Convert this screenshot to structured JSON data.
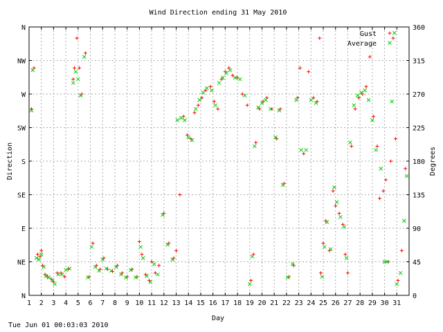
{
  "footer": "Tue Jun 01 00:03:03 2010",
  "chart_data": {
    "type": "scatter",
    "title": "Wind Direction ending 31 May 2010",
    "xlabel": "Day",
    "ylabel_left": "Direction",
    "ylabel_right": "Degrees",
    "xlim": [
      1,
      32
    ],
    "ylim": [
      0,
      360
    ],
    "x_ticks": [
      "1",
      "2",
      "3",
      "4",
      "5",
      "6",
      "7",
      "8",
      "9",
      "10",
      "11",
      "12",
      "13",
      "14",
      "15",
      "16",
      "17",
      "18",
      "19",
      "20",
      "21",
      "22",
      "23",
      "24",
      "25",
      "26",
      "27",
      "28",
      "29",
      "30",
      "31"
    ],
    "y_ticks_left": [
      {
        "value": 0,
        "label": "N"
      },
      {
        "value": 45,
        "label": "NE"
      },
      {
        "value": 90,
        "label": "E"
      },
      {
        "value": 135,
        "label": "SE"
      },
      {
        "value": 180,
        "label": "S"
      },
      {
        "value": 225,
        "label": "SW"
      },
      {
        "value": 270,
        "label": "W"
      },
      {
        "value": 315,
        "label": "NW"
      },
      {
        "value": 360,
        "label": "N"
      }
    ],
    "y_ticks_right": [
      0,
      45,
      90,
      135,
      180,
      225,
      270,
      315,
      360
    ],
    "grid": true,
    "legend_position": "top-right",
    "series": [
      {
        "name": "Gust",
        "color": "#ff0000",
        "points": [
          [
            1.2,
            250
          ],
          [
            1.4,
            305
          ],
          [
            1.7,
            55
          ],
          [
            1.9,
            52
          ],
          [
            2.0,
            60
          ],
          [
            2.1,
            40
          ],
          [
            2.3,
            28
          ],
          [
            2.5,
            25
          ],
          [
            2.8,
            22
          ],
          [
            3.0,
            18
          ],
          [
            3.3,
            30
          ],
          [
            3.6,
            30
          ],
          [
            3.9,
            25
          ],
          [
            4.2,
            35
          ],
          [
            4.6,
            290
          ],
          [
            4.7,
            305
          ],
          [
            4.9,
            345
          ],
          [
            5.1,
            305
          ],
          [
            5.3,
            270
          ],
          [
            5.6,
            325
          ],
          [
            5.9,
            25
          ],
          [
            6.2,
            70
          ],
          [
            6.5,
            40
          ],
          [
            6.8,
            35
          ],
          [
            7.1,
            50
          ],
          [
            7.4,
            35
          ],
          [
            7.8,
            32
          ],
          [
            8.2,
            40
          ],
          [
            8.6,
            30
          ],
          [
            9.0,
            25
          ],
          [
            9.4,
            35
          ],
          [
            9.8,
            25
          ],
          [
            10.0,
            72
          ],
          [
            10.2,
            55
          ],
          [
            10.5,
            28
          ],
          [
            10.8,
            20
          ],
          [
            11.0,
            45
          ],
          [
            11.3,
            30
          ],
          [
            11.6,
            40
          ],
          [
            12.0,
            110
          ],
          [
            12.4,
            70
          ],
          [
            12.8,
            50
          ],
          [
            13.0,
            60
          ],
          [
            13.3,
            135
          ],
          [
            13.6,
            240
          ],
          [
            13.9,
            215
          ],
          [
            14.2,
            210
          ],
          [
            14.5,
            245
          ],
          [
            14.8,
            255
          ],
          [
            15.1,
            265
          ],
          [
            15.4,
            275
          ],
          [
            15.8,
            280
          ],
          [
            16.1,
            260
          ],
          [
            16.4,
            250
          ],
          [
            16.7,
            290
          ],
          [
            17.0,
            300
          ],
          [
            17.3,
            305
          ],
          [
            17.6,
            295
          ],
          [
            18.0,
            292
          ],
          [
            18.4,
            270
          ],
          [
            18.8,
            255
          ],
          [
            19.1,
            20
          ],
          [
            19.3,
            55
          ],
          [
            19.5,
            205
          ],
          [
            19.8,
            250
          ],
          [
            20.1,
            260
          ],
          [
            20.4,
            265
          ],
          [
            20.8,
            250
          ],
          [
            21.2,
            210
          ],
          [
            21.5,
            250
          ],
          [
            21.8,
            150
          ],
          [
            22.2,
            25
          ],
          [
            22.6,
            40
          ],
          [
            22.9,
            265
          ],
          [
            23.1,
            305
          ],
          [
            23.4,
            190
          ],
          [
            23.8,
            300
          ],
          [
            24.2,
            265
          ],
          [
            24.5,
            260
          ],
          [
            24.7,
            345
          ],
          [
            24.8,
            30
          ],
          [
            25.0,
            70
          ],
          [
            25.2,
            100
          ],
          [
            25.5,
            60
          ],
          [
            25.8,
            140
          ],
          [
            26.0,
            120
          ],
          [
            26.3,
            110
          ],
          [
            26.6,
            95
          ],
          [
            26.8,
            55
          ],
          [
            27.0,
            30
          ],
          [
            27.3,
            200
          ],
          [
            27.6,
            250
          ],
          [
            27.9,
            265
          ],
          [
            28.2,
            270
          ],
          [
            28.5,
            280
          ],
          [
            28.8,
            320
          ],
          [
            29.1,
            240
          ],
          [
            29.4,
            200
          ],
          [
            29.6,
            130
          ],
          [
            29.9,
            140
          ],
          [
            30.1,
            155
          ],
          [
            30.3,
            45
          ],
          [
            30.5,
            180
          ],
          [
            30.7,
            345
          ],
          [
            30.9,
            210
          ],
          [
            31.1,
            20
          ],
          [
            31.4,
            60
          ],
          [
            31.7,
            170
          ]
        ]
      },
      {
        "name": "Average",
        "color": "#00cc00",
        "points": [
          [
            1.2,
            248
          ],
          [
            1.3,
            302
          ],
          [
            1.6,
            50
          ],
          [
            1.8,
            48
          ],
          [
            2.0,
            55
          ],
          [
            2.2,
            38
          ],
          [
            2.4,
            26
          ],
          [
            2.6,
            24
          ],
          [
            2.9,
            20
          ],
          [
            3.1,
            15
          ],
          [
            3.4,
            28
          ],
          [
            3.7,
            28
          ],
          [
            4.0,
            34
          ],
          [
            4.3,
            36
          ],
          [
            4.6,
            285
          ],
          [
            4.8,
            300
          ],
          [
            5.0,
            290
          ],
          [
            5.2,
            268
          ],
          [
            5.5,
            320
          ],
          [
            5.8,
            24
          ],
          [
            6.1,
            65
          ],
          [
            6.4,
            38
          ],
          [
            6.7,
            33
          ],
          [
            7.0,
            48
          ],
          [
            7.3,
            36
          ],
          [
            7.7,
            33
          ],
          [
            8.1,
            38
          ],
          [
            8.5,
            28
          ],
          [
            8.9,
            24
          ],
          [
            9.3,
            34
          ],
          [
            9.7,
            24
          ],
          [
            10.1,
            65
          ],
          [
            10.3,
            50
          ],
          [
            10.6,
            26
          ],
          [
            10.9,
            18
          ],
          [
            11.2,
            42
          ],
          [
            11.5,
            28
          ],
          [
            11.9,
            108
          ],
          [
            12.3,
            68
          ],
          [
            12.7,
            48
          ],
          [
            13.1,
            235
          ],
          [
            13.4,
            238
          ],
          [
            13.7,
            235
          ],
          [
            14.0,
            212
          ],
          [
            14.3,
            208
          ],
          [
            14.6,
            250
          ],
          [
            14.9,
            262
          ],
          [
            15.2,
            272
          ],
          [
            15.5,
            278
          ],
          [
            15.9,
            275
          ],
          [
            16.2,
            255
          ],
          [
            16.5,
            285
          ],
          [
            16.8,
            292
          ],
          [
            17.1,
            298
          ],
          [
            17.4,
            302
          ],
          [
            17.8,
            292
          ],
          [
            18.2,
            290
          ],
          [
            18.6,
            268
          ],
          [
            19.0,
            15
          ],
          [
            19.2,
            52
          ],
          [
            19.4,
            200
          ],
          [
            19.7,
            252
          ],
          [
            20.0,
            258
          ],
          [
            20.3,
            262
          ],
          [
            20.7,
            250
          ],
          [
            21.1,
            212
          ],
          [
            21.4,
            248
          ],
          [
            21.7,
            148
          ],
          [
            22.1,
            24
          ],
          [
            22.5,
            42
          ],
          [
            22.8,
            262
          ],
          [
            23.2,
            195
          ],
          [
            23.6,
            195
          ],
          [
            24.0,
            262
          ],
          [
            24.4,
            258
          ],
          [
            24.9,
            25
          ],
          [
            25.1,
            65
          ],
          [
            25.3,
            98
          ],
          [
            25.6,
            62
          ],
          [
            25.9,
            145
          ],
          [
            26.1,
            125
          ],
          [
            26.4,
            105
          ],
          [
            26.7,
            92
          ],
          [
            26.9,
            50
          ],
          [
            27.2,
            205
          ],
          [
            27.5,
            255
          ],
          [
            27.8,
            268
          ],
          [
            28.1,
            272
          ],
          [
            28.4,
            275
          ],
          [
            28.7,
            262
          ],
          [
            29.0,
            235
          ],
          [
            29.3,
            195
          ],
          [
            29.7,
            170
          ],
          [
            30.0,
            45
          ],
          [
            30.2,
            45
          ],
          [
            30.6,
            260
          ],
          [
            30.8,
            352
          ],
          [
            31.0,
            15
          ],
          [
            31.3,
            30
          ],
          [
            31.6,
            100
          ],
          [
            31.8,
            160
          ]
        ]
      }
    ]
  }
}
